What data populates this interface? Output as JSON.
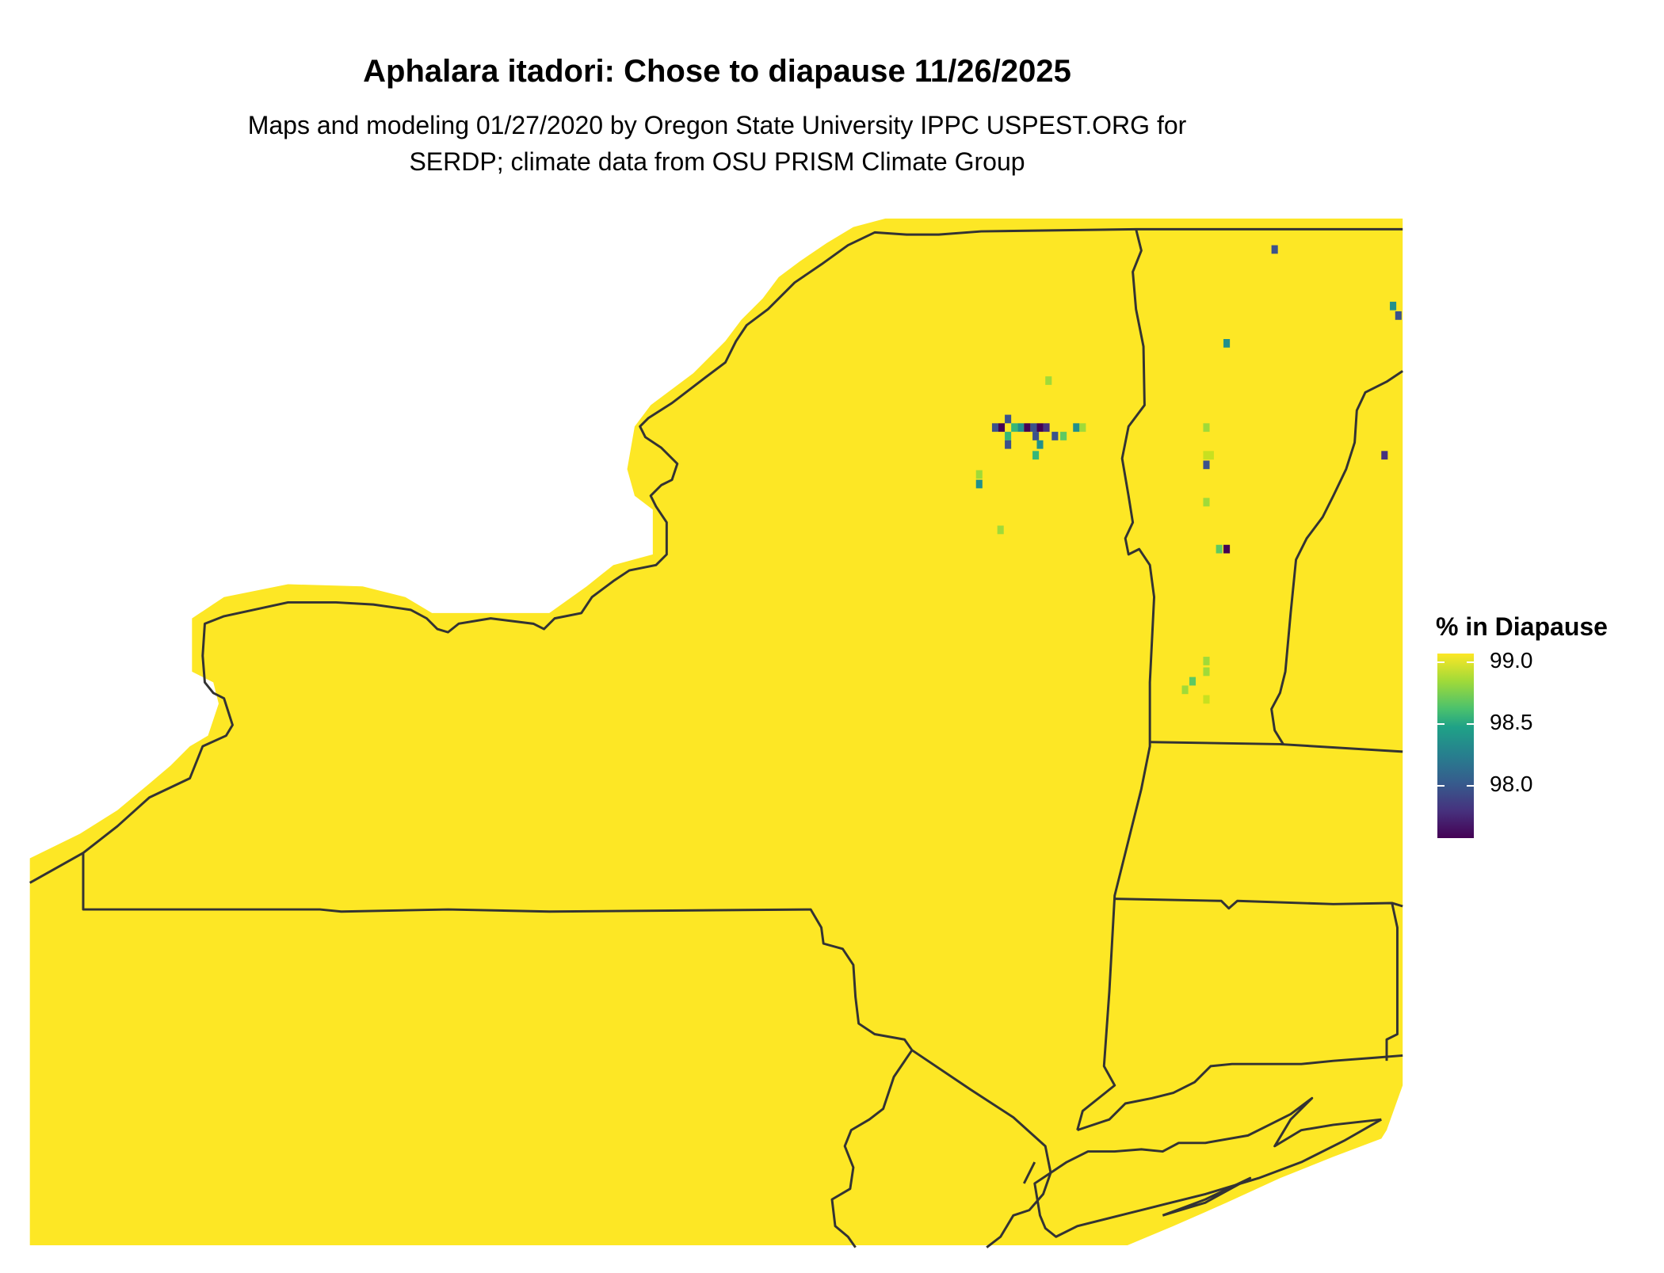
{
  "title": "Aphalara itadori: Chose to diapause 11/26/2025",
  "subtitle": [
    "Maps and modeling 01/27/2020 by Oregon State University IPPC USPEST.ORG for",
    "SERDP; climate data from OSU PRISM Climate Group"
  ],
  "legend": {
    "title": "% in Diapause",
    "ticks": [
      "99.0",
      "98.5",
      "98.0"
    ],
    "range": [
      97.55,
      99.05
    ],
    "palette": "viridis",
    "colors": {
      "high": "#fde725",
      "mid": "#21908c",
      "low": "#440154"
    }
  },
  "map": {
    "region": "New York and New England (northeastern US)",
    "fill_color": "#fde725",
    "border_color": "#333333",
    "background": "#ffffff"
  }
}
